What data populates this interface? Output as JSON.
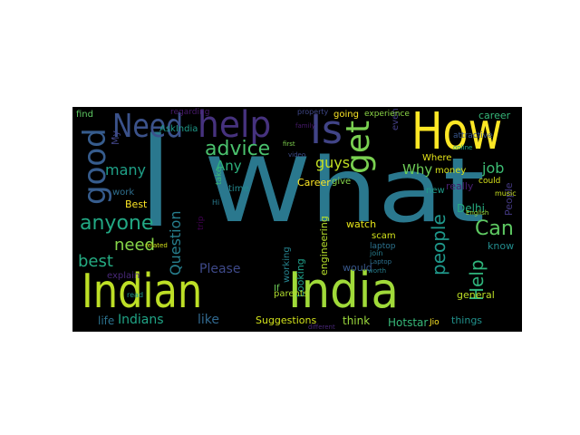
{
  "figure": {
    "background": "#000000",
    "colormap": "viridis"
  },
  "words": [
    {
      "text": "I",
      "color": "#2a788e"
    },
    {
      "text": "What",
      "color": "#2a788e"
    },
    {
      "text": "India",
      "color": "#a0da39"
    },
    {
      "text": "Indian",
      "color": "#bddf26"
    },
    {
      "text": "How",
      "color": "#fde725"
    },
    {
      "text": "help",
      "color": "#46327e"
    },
    {
      "text": "Need",
      "color": "#3b528b"
    },
    {
      "text": "Is",
      "color": "#414487"
    },
    {
      "text": "get",
      "color": "#7ad151"
    },
    {
      "text": "good",
      "color": "#365c8d"
    },
    {
      "text": "advice",
      "color": "#4ac16d"
    },
    {
      "text": "anyone",
      "color": "#22a884"
    },
    {
      "text": "Help",
      "color": "#2fb47c"
    },
    {
      "text": "Can",
      "color": "#5ec962"
    },
    {
      "text": "people",
      "color": "#1f988b"
    },
    {
      "text": "Question",
      "color": "#277f8e"
    },
    {
      "text": "need",
      "color": "#86d549"
    },
    {
      "text": "best",
      "color": "#25ab82"
    },
    {
      "text": "many",
      "color": "#1fa188"
    },
    {
      "text": "guys",
      "color": "#c2df23"
    },
    {
      "text": "Any",
      "color": "#2db27d"
    },
    {
      "text": "job",
      "color": "#3dbc74"
    },
    {
      "text": "Why",
      "color": "#6ece58"
    },
    {
      "text": "Please",
      "color": "#3e4989"
    },
    {
      "text": "Indians",
      "color": "#20a486"
    },
    {
      "text": "like",
      "color": "#31688e"
    },
    {
      "text": "Suggestions",
      "color": "#d2e21b"
    },
    {
      "text": "think",
      "color": "#9bd93c"
    },
    {
      "text": "Hotstar",
      "color": "#37b878"
    },
    {
      "text": "life",
      "color": "#2c728e"
    },
    {
      "text": "explain",
      "color": "#482878"
    },
    {
      "text": "general",
      "color": "#bddf26"
    },
    {
      "text": "Delhi",
      "color": "#26ad81"
    },
    {
      "text": "Career",
      "color": "#fde725"
    },
    {
      "text": "Best",
      "color": "#fde725"
    },
    {
      "text": "really",
      "color": "#481f70"
    },
    {
      "text": "Looking",
      "color": "#1f9e89"
    },
    {
      "text": "engineering",
      "color": "#b5de2b"
    },
    {
      "text": "watch",
      "color": "#e5e419"
    },
    {
      "text": "would",
      "color": "#38588c"
    },
    {
      "text": "Where",
      "color": "#e5e419"
    },
    {
      "text": "money",
      "color": "#d8e219"
    },
    {
      "text": "career",
      "color": "#35b779"
    },
    {
      "text": "know",
      "color": "#228c8d"
    },
    {
      "text": "things",
      "color": "#21918c"
    },
    {
      "text": "People",
      "color": "#443983"
    },
    {
      "text": "work",
      "color": "#2e6e8e"
    },
    {
      "text": "find",
      "color": "#5ec962"
    },
    {
      "text": "AskIndia",
      "color": "#1f9a8a"
    },
    {
      "text": "My",
      "color": "#414487"
    },
    {
      "text": "going",
      "color": "#fde725"
    },
    {
      "text": "even",
      "color": "#433e85"
    },
    {
      "text": "If",
      "color": "#6ece58"
    },
    {
      "text": "give",
      "color": "#84d44b"
    },
    {
      "text": "time",
      "color": "#23898e"
    },
    {
      "text": "new",
      "color": "#1e9b8a"
    },
    {
      "text": "working",
      "color": "#26828e"
    },
    {
      "text": "parents",
      "color": "#b0dd2f"
    },
    {
      "text": "experience",
      "color": "#8bd646"
    },
    {
      "text": "regarding",
      "color": "#481a6c"
    },
    {
      "text": "trip",
      "color": "#440154"
    },
    {
      "text": "take",
      "color": "#3aba76"
    },
    {
      "text": "Jio",
      "color": "#fde725"
    },
    {
      "text": "scam",
      "color": "#d2e21b"
    },
    {
      "text": "laptop",
      "color": "#2c728e"
    },
    {
      "text": "property",
      "color": "#3f4788"
    },
    {
      "text": "attractive",
      "color": "#39568c"
    },
    {
      "text": "could",
      "color": "#d8e219"
    },
    {
      "text": "join",
      "color": "#287d8e"
    },
    {
      "text": "Hi",
      "color": "#297b8e"
    },
    {
      "text": "read",
      "color": "#1f978b"
    },
    {
      "text": "family",
      "color": "#481b6d"
    },
    {
      "text": "different",
      "color": "#482677"
    },
    {
      "text": "Laptop",
      "color": "#2d708e"
    },
    {
      "text": "music",
      "color": "#c8e020"
    },
    {
      "text": "video",
      "color": "#3e4c8a"
    },
    {
      "text": "first",
      "color": "#7fd34e"
    },
    {
      "text": "worth",
      "color": "#277f8e"
    },
    {
      "text": "online",
      "color": "#20a386"
    },
    {
      "text": "English",
      "color": "#9bd93c"
    },
    {
      "text": "related",
      "color": "#d5e21a"
    }
  ]
}
